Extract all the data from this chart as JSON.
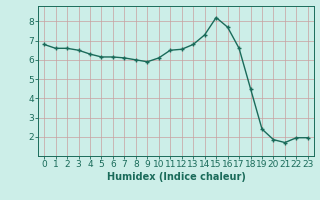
{
  "x": [
    0,
    1,
    2,
    3,
    4,
    5,
    6,
    7,
    8,
    9,
    10,
    11,
    12,
    13,
    14,
    15,
    16,
    17,
    18,
    19,
    20,
    21,
    22,
    23
  ],
  "y": [
    6.8,
    6.6,
    6.6,
    6.5,
    6.3,
    6.15,
    6.15,
    6.1,
    6.0,
    5.9,
    6.1,
    6.5,
    6.55,
    6.8,
    7.3,
    8.2,
    7.7,
    6.6,
    4.5,
    2.4,
    1.85,
    1.7,
    1.95,
    1.95
  ],
  "line_color": "#1a6b5a",
  "marker": "+",
  "marker_size": 3,
  "background_color": "#cceee8",
  "grid_color_major": "#c8a0a0",
  "grid_color_minor": "#c8a0a0",
  "xlabel": "Humidex (Indice chaleur)",
  "xlabel_fontsize": 7,
  "tick_fontsize": 6.5,
  "xlim": [
    -0.5,
    23.5
  ],
  "ylim": [
    1.0,
    8.8
  ],
  "yticks": [
    2,
    3,
    4,
    5,
    6,
    7,
    8
  ],
  "xticks": [
    0,
    1,
    2,
    3,
    4,
    5,
    6,
    7,
    8,
    9,
    10,
    11,
    12,
    13,
    14,
    15,
    16,
    17,
    18,
    19,
    20,
    21,
    22,
    23
  ]
}
